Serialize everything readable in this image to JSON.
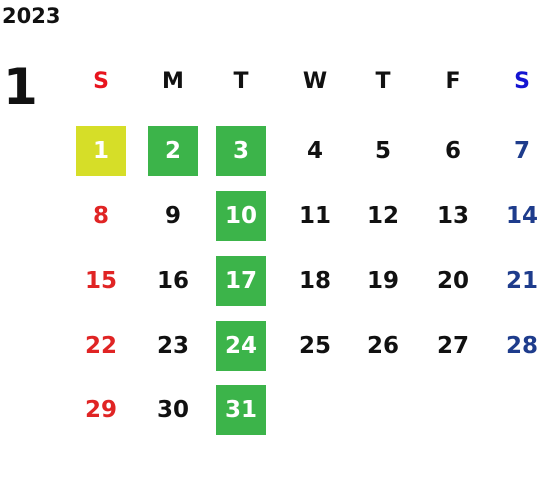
{
  "year": "2023",
  "month": "1",
  "weekdays": [
    {
      "label": "S",
      "header_color": "#e8141e",
      "day_color": "#e02424"
    },
    {
      "label": "M",
      "header_color": "#111111",
      "day_color": "#111111"
    },
    {
      "label": "T",
      "header_color": "#111111",
      "day_color": "#111111"
    },
    {
      "label": "W",
      "header_color": "#111111",
      "day_color": "#111111"
    },
    {
      "label": "T",
      "header_color": "#111111",
      "day_color": "#111111"
    },
    {
      "label": "F",
      "header_color": "#111111",
      "day_color": "#111111"
    },
    {
      "label": "S",
      "header_color": "#1414d2",
      "day_color": "#1e3c8c"
    }
  ],
  "weeks": [
    [
      {
        "day": "1",
        "highlight": "#d6de28"
      },
      {
        "day": "2",
        "highlight": "#3cb44a"
      },
      {
        "day": "3",
        "highlight": "#3cb44a"
      },
      "4",
      "5",
      "6",
      "7"
    ],
    [
      "8",
      "9",
      {
        "day": "10",
        "highlight": "#3cb44a"
      },
      "11",
      "12",
      "13",
      "14"
    ],
    [
      "15",
      "16",
      {
        "day": "17",
        "highlight": "#3cb44a"
      },
      "18",
      "19",
      "20",
      "21"
    ],
    [
      "22",
      "23",
      {
        "day": "24",
        "highlight": "#3cb44a"
      },
      "25",
      "26",
      "27",
      "28"
    ],
    [
      "29",
      "30",
      {
        "day": "31",
        "highlight": "#3cb44a"
      },
      null,
      null,
      null,
      null
    ]
  ]
}
